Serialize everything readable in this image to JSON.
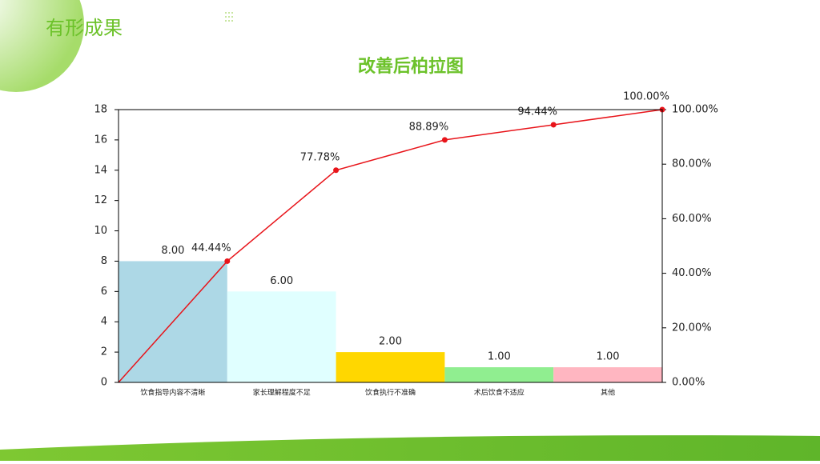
{
  "slide_title": "有形成果",
  "chart_data": {
    "type": "pareto",
    "title": "改善后柏拉图",
    "categories": [
      "饮食指导内容不清晰",
      "家长理解程度不足",
      "饮食执行不准确",
      "术后饮食不适应",
      "其他"
    ],
    "values": [
      8,
      6,
      2,
      1,
      1
    ],
    "value_labels": [
      "8.00",
      "6.00",
      "2.00",
      "1.00",
      "1.00"
    ],
    "colors": [
      "#add8e6",
      "#e0ffff",
      "#ffd700",
      "#90ee90",
      "#ffb6c1"
    ],
    "cumulative": {
      "color": "#e8141a",
      "axis": "y2",
      "values": [
        0,
        44.44,
        77.78,
        88.89,
        94.44,
        100
      ],
      "value_labels": [
        null,
        "44.44%",
        "77.78%",
        "88.89%",
        "94.44%",
        "100.00%"
      ]
    },
    "ylim": [
      0,
      18
    ],
    "yticks": [
      0,
      2,
      4,
      6,
      8,
      10,
      12,
      14,
      16,
      18
    ],
    "y2lim": [
      0,
      100
    ],
    "y2ticks": [
      {
        "value": 0,
        "label": "0.00%"
      },
      {
        "value": 20,
        "label": "20.00%"
      },
      {
        "value": 40,
        "label": "40.00%"
      },
      {
        "value": 60,
        "label": "60.00%"
      },
      {
        "value": 80,
        "label": "80.00%"
      },
      {
        "value": 100,
        "label": "100.00%"
      }
    ]
  }
}
